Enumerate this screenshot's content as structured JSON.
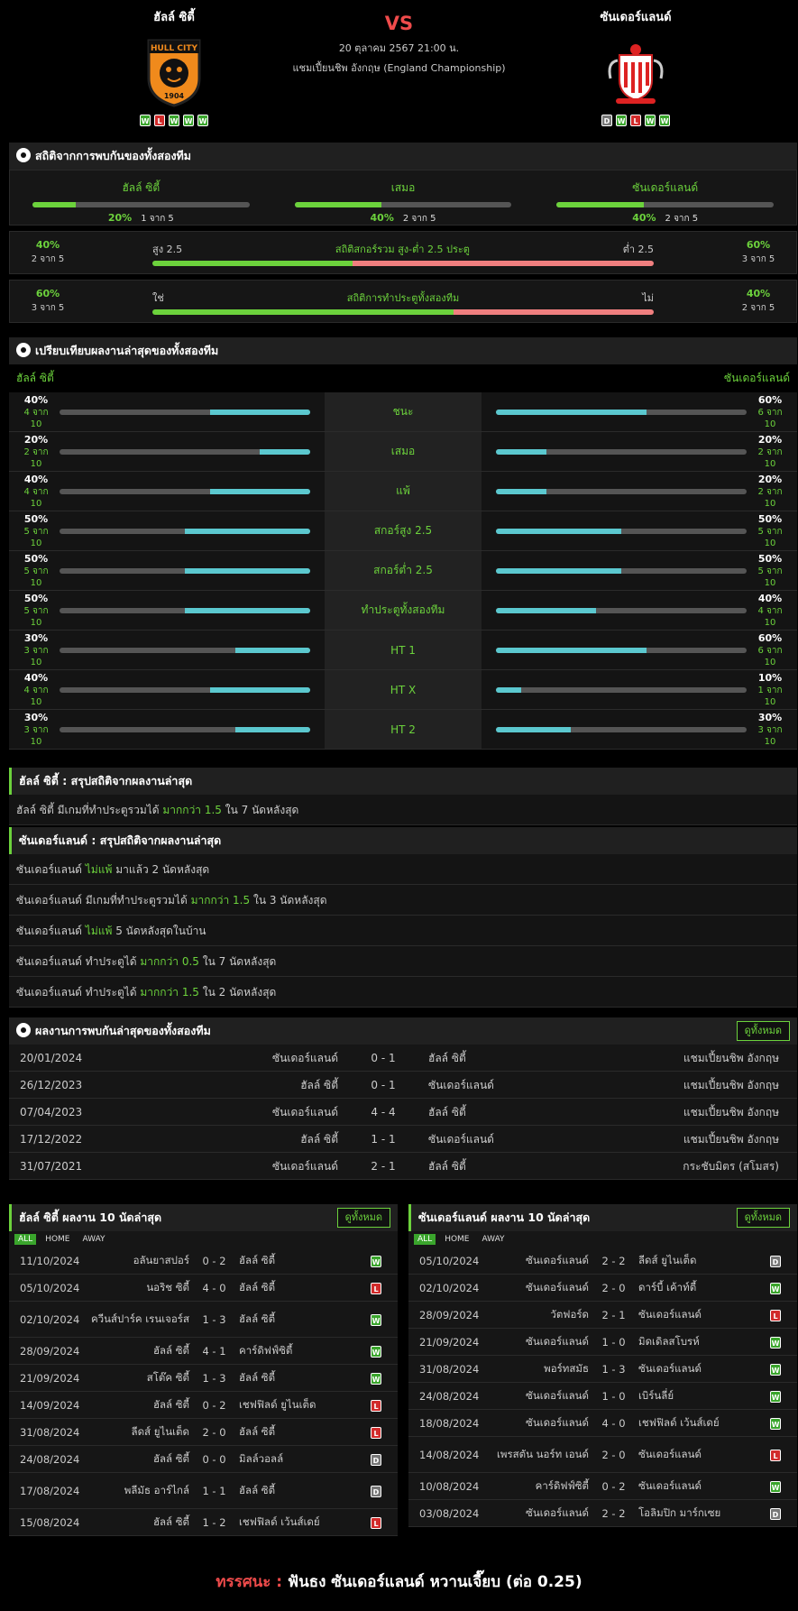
{
  "home": {
    "name": "ฮัลล์ ซิตี้",
    "crest_text": "HULL CITY",
    "crest_year": "1904",
    "form": [
      "W",
      "L",
      "W",
      "W",
      "W"
    ]
  },
  "away": {
    "name": "ซันเดอร์แลนด์",
    "form": [
      "D",
      "W",
      "L",
      "W",
      "W"
    ]
  },
  "match": {
    "vs": "VS",
    "datetime": "20 ตุลาคม 2567 21:00 น.",
    "competition": "แชมเปี้ยนชิพ อังกฤษ (England Championship)"
  },
  "h2h_stats": {
    "title": "สถิติจากการพบกันของทั้งสองทีม",
    "cols": [
      {
        "label": "ฮัลล์ ซิตี้",
        "pct": "20%",
        "of": "1 จาก 5",
        "value": 0.2
      },
      {
        "label": "เสมอ",
        "pct": "40%",
        "of": "2 จาก 5",
        "value": 0.4
      },
      {
        "label": "ซันเดอร์แลนด์",
        "pct": "40%",
        "of": "2 จาก 5",
        "value": 0.4
      }
    ],
    "ou": {
      "title": "สถิติสกอร์รวม สูง-ต่ำ 2.5 ประตู",
      "left_label": "สูง 2.5",
      "right_label": "ต่ำ 2.5",
      "left_pct": "40%",
      "left_of": "2 จาก 5",
      "right_pct": "60%",
      "right_of": "3 จาก 5",
      "value": 0.4
    },
    "btts": {
      "title": "สถิติการทำประตูทั้งสองทีม",
      "left_label": "ใช่",
      "right_label": "ไม่",
      "left_pct": "60%",
      "left_of": "3 จาก 5",
      "right_pct": "40%",
      "right_of": "2 จาก 5",
      "value": 0.6
    }
  },
  "compare": {
    "title": "เปรียบเทียบผลงานล่าสุดของทั้งสองทีม",
    "home": "ฮัลล์ ซิตี้",
    "away": "ซันเดอร์แลนด์",
    "rows": [
      {
        "label": "ชนะ",
        "hp": "40%",
        "ho": "4 จาก 10",
        "hv": 0.4,
        "ap": "60%",
        "ao": "6 จาก 10",
        "av": 0.6
      },
      {
        "label": "เสมอ",
        "hp": "20%",
        "ho": "2 จาก 10",
        "hv": 0.2,
        "ap": "20%",
        "ao": "2 จาก 10",
        "av": 0.2
      },
      {
        "label": "แพ้",
        "hp": "40%",
        "ho": "4 จาก 10",
        "hv": 0.4,
        "ap": "20%",
        "ao": "2 จาก 10",
        "av": 0.2
      },
      {
        "label": "สกอร์สูง 2.5",
        "hp": "50%",
        "ho": "5 จาก 10",
        "hv": 0.5,
        "ap": "50%",
        "ao": "5 จาก 10",
        "av": 0.5
      },
      {
        "label": "สกอร์ต่ำ 2.5",
        "hp": "50%",
        "ho": "5 จาก 10",
        "hv": 0.5,
        "ap": "50%",
        "ao": "5 จาก 10",
        "av": 0.5
      },
      {
        "label": "ทำประตูทั้งสองทีม",
        "hp": "50%",
        "ho": "5 จาก 10",
        "hv": 0.5,
        "ap": "40%",
        "ao": "4 จาก 10",
        "av": 0.4
      },
      {
        "label": "HT 1",
        "hp": "30%",
        "ho": "3 จาก 10",
        "hv": 0.3,
        "ap": "60%",
        "ao": "6 จาก 10",
        "av": 0.6
      },
      {
        "label": "HT X",
        "hp": "40%",
        "ho": "4 จาก 10",
        "hv": 0.4,
        "ap": "10%",
        "ao": "1 จาก 10",
        "av": 0.1
      },
      {
        "label": "HT 2",
        "hp": "30%",
        "ho": "3 จาก 10",
        "hv": 0.3,
        "ap": "30%",
        "ao": "3 จาก 10",
        "av": 0.3
      }
    ]
  },
  "home_summary": {
    "title": "ฮัลล์ ซิตี้ : สรุปสถิติจากผลงานล่าสุด",
    "lines": [
      [
        "ฮัลล์ ซิตี้ มีเกมที่ทำประตูรวมได้ ",
        "มากกว่า 1.5",
        " ใน 7 นัดหลังสุด"
      ]
    ]
  },
  "away_summary": {
    "title": "ซันเดอร์แลนด์ : สรุปสถิติจากผลงานล่าสุด",
    "lines": [
      [
        "ซันเดอร์แลนด์ ",
        "ไม่แพ้",
        " มาแล้ว 2 นัดหลังสุด"
      ],
      [
        "ซันเดอร์แลนด์ มีเกมที่ทำประตูรวมได้ ",
        "มากกว่า 1.5",
        " ใน 3 นัดหลังสุด"
      ],
      [
        "ซันเดอร์แลนด์ ",
        "ไม่แพ้",
        " 5 นัดหลังสุดในบ้าน"
      ],
      [
        "ซันเดอร์แลนด์ ทำประตูได้ ",
        "มากกว่า 0.5",
        " ใน 7 นัดหลังสุด"
      ],
      [
        "ซันเดอร์แลนด์ ทำประตูได้ ",
        "มากกว่า 1.5",
        " ใน 2 นัดหลังสุด"
      ]
    ]
  },
  "h2h": {
    "title": "ผลงานการพบกันล่าสุดของทั้งสองทีม",
    "view_all": "ดูทั้งหมด",
    "rows": [
      {
        "date": "20/01/2024",
        "home": "ซันเดอร์แลนด์",
        "score": "0 - 1",
        "away": "ฮัลล์ ซิตี้",
        "comp": "แชมเปี้ยนชิพ อังกฤษ"
      },
      {
        "date": "26/12/2023",
        "home": "ฮัลล์ ซิตี้",
        "score": "0 - 1",
        "away": "ซันเดอร์แลนด์",
        "comp": "แชมเปี้ยนชิพ อังกฤษ"
      },
      {
        "date": "07/04/2023",
        "home": "ซันเดอร์แลนด์",
        "score": "4 - 4",
        "away": "ฮัลล์ ซิตี้",
        "comp": "แชมเปี้ยนชิพ อังกฤษ"
      },
      {
        "date": "17/12/2022",
        "home": "ฮัลล์ ซิตี้",
        "score": "1 - 1",
        "away": "ซันเดอร์แลนด์",
        "comp": "แชมเปี้ยนชิพ อังกฤษ"
      },
      {
        "date": "31/07/2021",
        "home": "ซันเดอร์แลนด์",
        "score": "2 - 1",
        "away": "ฮัลล์ ซิตี้",
        "comp": "กระชับมิตร (สโมสร)"
      }
    ]
  },
  "home_last10": {
    "title": "ฮัลล์ ซิตี้ ผลงาน 10 นัดล่าสุด",
    "view_all": "ดูทั้งหมด",
    "tabs": [
      "ALL",
      "HOME",
      "AWAY"
    ],
    "rows": [
      {
        "date": "11/10/2024",
        "home": "อลันยาสปอร์",
        "score": "0 - 2",
        "away": "ฮัลล์ ซิตี้",
        "res": "W"
      },
      {
        "date": "05/10/2024",
        "home": "นอริช ซิตี้",
        "score": "4 - 0",
        "away": "ฮัลล์ ซิตี้",
        "res": "L"
      },
      {
        "date": "02/10/2024",
        "home": "ควีนส์ปาร์ค เรนเจอร์ส",
        "score": "1 - 3",
        "away": "ฮัลล์ ซิตี้",
        "res": "W"
      },
      {
        "date": "28/09/2024",
        "home": "ฮัลล์ ซิตี้",
        "score": "4 - 1",
        "away": "คาร์ดิฟฟ์ซิตี้",
        "res": "W"
      },
      {
        "date": "21/09/2024",
        "home": "สโต๊ค ซิตี้",
        "score": "1 - 3",
        "away": "ฮัลล์ ซิตี้",
        "res": "W"
      },
      {
        "date": "14/09/2024",
        "home": "ฮัลล์ ซิตี้",
        "score": "0 - 2",
        "away": "เชฟฟิลด์ ยูไนเต็ด",
        "res": "L"
      },
      {
        "date": "31/08/2024",
        "home": "ลีดส์ ยูไนเต็ด",
        "score": "2 - 0",
        "away": "ฮัลล์ ซิตี้",
        "res": "L"
      },
      {
        "date": "24/08/2024",
        "home": "ฮัลล์ ซิตี้",
        "score": "0 - 0",
        "away": "มิลล์วอลล์",
        "res": "D"
      },
      {
        "date": "17/08/2024",
        "home": "พลีมัธ อาร์ไกล์",
        "score": "1 - 1",
        "away": "ฮัลล์ ซิตี้",
        "res": "D"
      },
      {
        "date": "15/08/2024",
        "home": "ฮัลล์ ซิตี้",
        "score": "1 - 2",
        "away": "เชฟฟิลด์ เว้นส์เดย์",
        "res": "L"
      }
    ]
  },
  "away_last10": {
    "title": "ซันเดอร์แลนด์ ผลงาน 10 นัดล่าสุด",
    "view_all": "ดูทั้งหมด",
    "tabs": [
      "ALL",
      "HOME",
      "AWAY"
    ],
    "rows": [
      {
        "date": "05/10/2024",
        "home": "ซันเดอร์แลนด์",
        "score": "2 - 2",
        "away": "ลีดส์ ยูไนเต็ด",
        "res": "D"
      },
      {
        "date": "02/10/2024",
        "home": "ซันเดอร์แลนด์",
        "score": "2 - 0",
        "away": "ดาร์บี้ เค้าท์ตี้",
        "res": "W"
      },
      {
        "date": "28/09/2024",
        "home": "วัตฟอร์ด",
        "score": "2 - 1",
        "away": "ซันเดอร์แลนด์",
        "res": "L"
      },
      {
        "date": "21/09/2024",
        "home": "ซันเดอร์แลนด์",
        "score": "1 - 0",
        "away": "มิดเดิลสโบรห์",
        "res": "W"
      },
      {
        "date": "31/08/2024",
        "home": "พอร์ทสมัธ",
        "score": "1 - 3",
        "away": "ซันเดอร์แลนด์",
        "res": "W"
      },
      {
        "date": "24/08/2024",
        "home": "ซันเดอร์แลนด์",
        "score": "1 - 0",
        "away": "เบิร์นลี่ย์",
        "res": "W"
      },
      {
        "date": "18/08/2024",
        "home": "ซันเดอร์แลนด์",
        "score": "4 - 0",
        "away": "เชฟฟิลด์ เว้นส์เดย์",
        "res": "W"
      },
      {
        "date": "14/08/2024",
        "home": "เพรสตัน นอร์ท เอนด์",
        "score": "2 - 0",
        "away": "ซันเดอร์แลนด์",
        "res": "L"
      },
      {
        "date": "10/08/2024",
        "home": "คาร์ดิฟฟ์ซิตี้",
        "score": "0 - 2",
        "away": "ซันเดอร์แลนด์",
        "res": "W"
      },
      {
        "date": "03/08/2024",
        "home": "ซันเดอร์แลนด์",
        "score": "2 - 2",
        "away": "โอลิมปิก มาร์กเซย",
        "res": "D"
      }
    ]
  },
  "verdict": {
    "label": "ทรรศนะ :",
    "text": "ฟันธง ซันเดอร์แลนด์ หวานเจี๊ยบ (ต่อ 0.25)"
  },
  "colors": {
    "green": "#6cd23c",
    "red": "#ef4b4b",
    "teal": "#5bc8cf",
    "pink": "#f07f7f"
  }
}
